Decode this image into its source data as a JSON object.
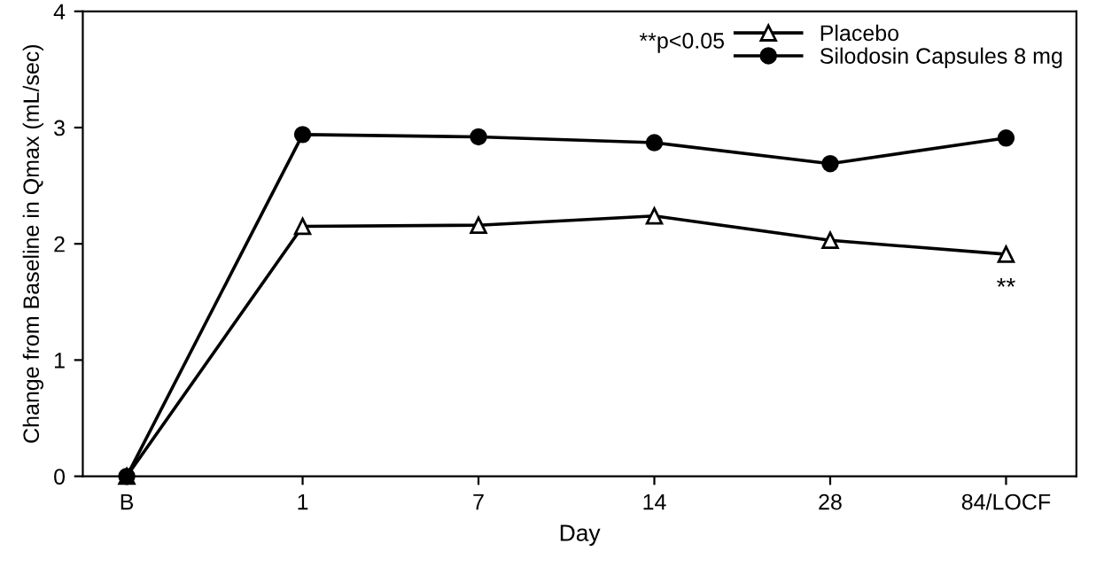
{
  "chart_data": {
    "type": "line",
    "xlabel": "Day",
    "ylabel": "Change from Baseline in Qmax (mL/sec)",
    "categories": [
      "B",
      "1",
      "7",
      "14",
      "28",
      "84/LOCF"
    ],
    "series": [
      {
        "name": "Placebo",
        "color": "#000000",
        "marker": "triangle",
        "values": [
          0,
          2.15,
          2.16,
          2.24,
          2.03,
          1.91
        ]
      },
      {
        "name": "Silodosin Capsules 8 mg",
        "color": "#000000",
        "marker": "circle",
        "values": [
          0,
          2.94,
          2.92,
          2.87,
          2.69,
          2.91
        ]
      }
    ],
    "ylim": [
      0,
      4
    ],
    "yticks": [
      0,
      1,
      2,
      3,
      4
    ],
    "grid": false,
    "legend": "top right",
    "line_style": "solid",
    "annotations": [
      "**p<0.05",
      {
        "text": "**",
        "x": "84/LOCF",
        "y": 1.91
      }
    ]
  }
}
